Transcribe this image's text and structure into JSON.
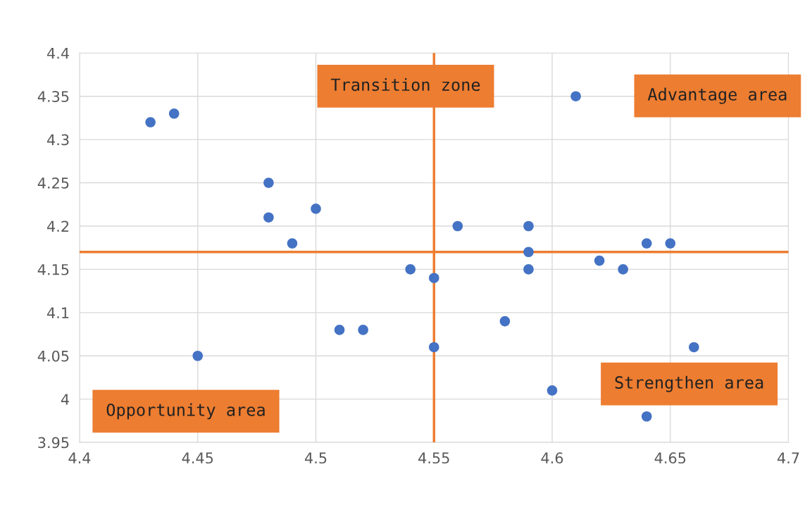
{
  "chart_data": {
    "type": "scatter",
    "marker": "circle",
    "grid": true,
    "x": [
      4.43,
      4.44,
      4.48,
      4.48,
      4.49,
      4.5,
      4.45,
      4.51,
      4.52,
      4.54,
      4.55,
      4.55,
      4.56,
      4.58,
      4.59,
      4.59,
      4.59,
      4.61,
      4.6,
      4.62,
      4.63,
      4.64,
      4.65,
      4.66,
      4.64
    ],
    "values": [
      4.32,
      4.33,
      4.25,
      4.21,
      4.18,
      4.22,
      4.05,
      4.08,
      4.08,
      4.15,
      4.14,
      4.06,
      4.2,
      4.09,
      4.2,
      4.17,
      4.15,
      4.35,
      4.01,
      4.16,
      4.15,
      4.18,
      4.18,
      4.06,
      3.98
    ],
    "color": "#4472c4",
    "xlim": [
      4.4,
      4.7
    ],
    "xticks": [
      4.4,
      4.45,
      4.5,
      4.55,
      4.6,
      4.65,
      4.7
    ],
    "ylim": [
      3.95,
      4.4
    ],
    "yticks": [
      3.95,
      4,
      4.05,
      4.1,
      4.15,
      4.2,
      4.25,
      4.3,
      4.35,
      4.4
    ],
    "ref_lines": [
      {
        "axis": "x",
        "value": 4.55,
        "color": "#ed7d31"
      },
      {
        "axis": "y",
        "value": 4.17,
        "color": "#ed7d31"
      }
    ],
    "annotations": [
      "Transition zone",
      "Advantage area",
      "Strengthen area",
      "Opportunity area"
    ]
  }
}
